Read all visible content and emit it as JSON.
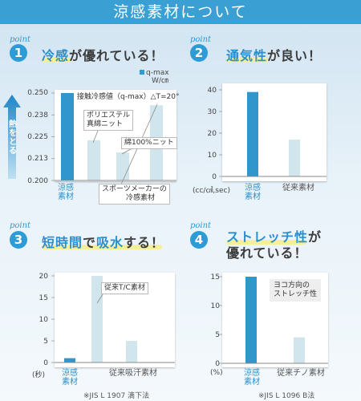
{
  "banner": {
    "title": "涼感素材について"
  },
  "points": [
    {
      "word": "point",
      "number": "1"
    },
    {
      "word": "point",
      "number": "2"
    },
    {
      "word": "point",
      "number": "3"
    },
    {
      "word": "point",
      "number": "4"
    }
  ],
  "headings": {
    "p1": {
      "hl": "冷感",
      "rest": "が優れている！"
    },
    "p2": {
      "hl": "通気性",
      "rest": "が良い！"
    },
    "p3": {
      "hl1": "短時間",
      "mid": "で",
      "hl2": "吸水",
      "rest": "する！"
    },
    "p4": {
      "hl": "ストレッチ性",
      "line1_rest": "が",
      "line2": "優れている！"
    }
  },
  "chart_data": [
    {
      "type": "bar",
      "categories": [
        "涼感素材",
        "ポリエステル真綿ニット",
        "綿100%ニット",
        "スポーツメーカーの冷感素材"
      ],
      "values": [
        0.25,
        0.223,
        0.216,
        0.243
      ],
      "ylim": [
        0.2,
        0.25
      ],
      "yticks": [
        "0.250",
        "0.238",
        "0.225",
        "0.213",
        "0.200"
      ],
      "legend": {
        "series": "q-max",
        "unit": "W/㎝"
      },
      "annotation": "接触冷感値（q-max）△T=20°",
      "arrow_label": "熱をとる",
      "category_labels": {
        "main": [
          "涼感",
          "素材"
        ],
        "poly": [
          "ポリエステル",
          "真綿ニット"
        ],
        "cotton": "綿100%ニット",
        "sport": [
          "スポーツメーカーの",
          "冷感素材"
        ]
      },
      "colors": {
        "main": "#3196cc",
        "other": "#d1e6ec"
      }
    },
    {
      "type": "bar",
      "categories": [
        "涼感素材",
        "従来素材"
      ],
      "values": [
        39,
        17
      ],
      "ylim": [
        0,
        40
      ],
      "yticks": [
        "40",
        "30",
        "20",
        "10",
        "0"
      ],
      "unit": "(cc/㎠,sec)",
      "category_labels": {
        "main": [
          "涼感",
          "素材"
        ],
        "other": "従来素材"
      }
    },
    {
      "type": "bar",
      "categories": [
        "涼感素材",
        "従来T/C素材",
        "従来吸汗素材"
      ],
      "values": [
        1,
        20,
        5
      ],
      "ylim": [
        0,
        20
      ],
      "yticks": [
        "20",
        "15",
        "10",
        "5",
        "0"
      ],
      "unit": "(秒)",
      "category_labels": {
        "main": [
          "涼感",
          "素材"
        ],
        "other": "従来吸汗素材"
      },
      "annotation": "従来T/C素材",
      "note": "※JIS L 1907 滴下法"
    },
    {
      "type": "bar",
      "categories": [
        "涼感素材",
        "従来チノ素材"
      ],
      "values": [
        15,
        4.5
      ],
      "ylim": [
        0,
        15
      ],
      "yticks": [
        "15",
        "10",
        "5",
        "0"
      ],
      "unit": "(%)",
      "category_labels": {
        "main": [
          "涼感",
          "素材"
        ],
        "other": "従来チノ素材"
      },
      "annotation": [
        "ヨコ方向の",
        "ストレッチ性"
      ],
      "note": "※JIS L 1096 B法"
    }
  ]
}
